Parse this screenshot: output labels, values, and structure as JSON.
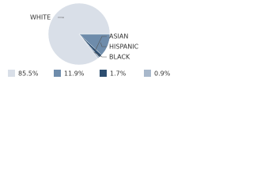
{
  "chart_data": {
    "type": "pie",
    "categories": [
      "WHITE",
      "HISPANIC",
      "ASIAN",
      "BLACK"
    ],
    "values": [
      85.5,
      11.9,
      1.7,
      0.9
    ],
    "value_labels": [
      "85.5%",
      "11.9%",
      "1.7%",
      "0.9%"
    ],
    "colors": [
      "#d9dfe8",
      "#6e8cab",
      "#2d4e70",
      "#a8b8cb"
    ]
  }
}
